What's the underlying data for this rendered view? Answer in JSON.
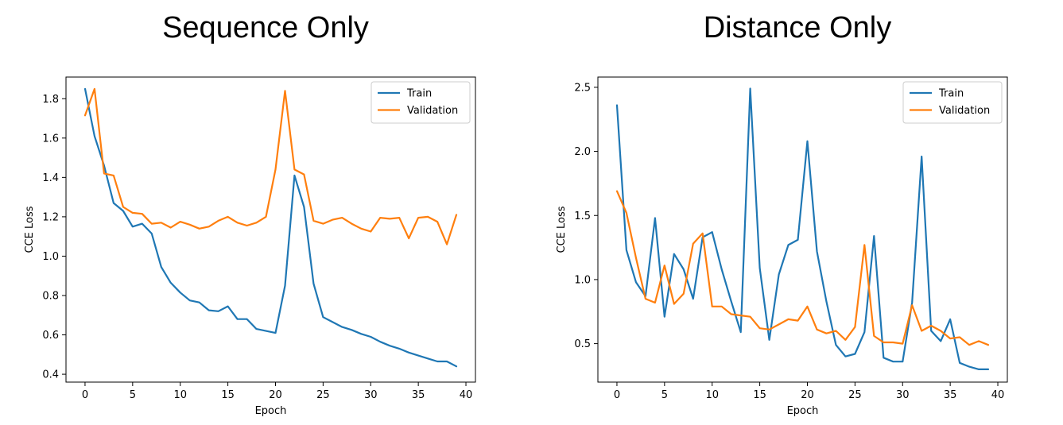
{
  "figures": {
    "left_title": "Sequence Only",
    "right_title": "Distance Only"
  },
  "colors": {
    "train": "#1f77b4",
    "validation": "#ff7f0e"
  },
  "chart_data": [
    {
      "type": "line",
      "title": "Sequence Only",
      "xlabel": "Epoch",
      "ylabel": "CCE Loss",
      "xlim": [
        -2,
        41
      ],
      "ylim": [
        0.36,
        1.91
      ],
      "xticks": [
        0,
        5,
        10,
        15,
        20,
        25,
        30,
        35,
        40
      ],
      "yticks": [
        0.4,
        0.6,
        0.8,
        1.0,
        1.2,
        1.4,
        1.6,
        1.8
      ],
      "ytick_labels": [
        "0.4",
        "0.6",
        "0.8",
        "1.0",
        "1.2",
        "1.4",
        "1.6",
        "1.8"
      ],
      "legend_position": "top-right",
      "grid": false,
      "x": [
        0,
        1,
        2,
        3,
        4,
        5,
        6,
        7,
        8,
        9,
        10,
        11,
        12,
        13,
        14,
        15,
        16,
        17,
        18,
        19,
        20,
        21,
        22,
        23,
        24,
        25,
        26,
        27,
        28,
        29,
        30,
        31,
        32,
        33,
        34,
        35,
        36,
        37,
        38,
        39
      ],
      "series": [
        {
          "name": "Train",
          "color": "#1f77b4",
          "values": [
            1.85,
            1.61,
            1.46,
            1.27,
            1.23,
            1.15,
            1.165,
            1.115,
            0.945,
            0.865,
            0.815,
            0.775,
            0.765,
            0.725,
            0.72,
            0.745,
            0.68,
            0.68,
            0.63,
            0.62,
            0.61,
            0.85,
            1.41,
            1.25,
            0.86,
            0.69,
            0.665,
            0.64,
            0.625,
            0.605,
            0.59,
            0.565,
            0.545,
            0.53,
            0.51,
            0.495,
            0.48,
            0.465,
            0.465,
            0.44
          ]
        },
        {
          "name": "Validation",
          "color": "#ff7f0e",
          "values": [
            1.715,
            1.85,
            1.42,
            1.41,
            1.25,
            1.22,
            1.215,
            1.165,
            1.17,
            1.145,
            1.175,
            1.16,
            1.14,
            1.15,
            1.18,
            1.2,
            1.17,
            1.155,
            1.17,
            1.2,
            1.44,
            1.84,
            1.44,
            1.415,
            1.18,
            1.165,
            1.185,
            1.195,
            1.165,
            1.14,
            1.125,
            1.195,
            1.19,
            1.195,
            1.09,
            1.195,
            1.2,
            1.175,
            1.06,
            1.21
          ]
        }
      ]
    },
    {
      "type": "line",
      "title": "Distance Only",
      "xlabel": "Epoch",
      "ylabel": "CCE Loss",
      "xlim": [
        -2,
        41
      ],
      "ylim": [
        0.2,
        2.58
      ],
      "xticks": [
        0,
        5,
        10,
        15,
        20,
        25,
        30,
        35,
        40
      ],
      "yticks": [
        0.5,
        1.0,
        1.5,
        2.0,
        2.5
      ],
      "ytick_labels": [
        "0.5",
        "1.0",
        "1.5",
        "2.0",
        "2.5"
      ],
      "legend_position": "top-right",
      "grid": false,
      "x": [
        0,
        1,
        2,
        3,
        4,
        5,
        6,
        7,
        8,
        9,
        10,
        11,
        12,
        13,
        14,
        15,
        16,
        17,
        18,
        19,
        20,
        21,
        22,
        23,
        24,
        25,
        26,
        27,
        28,
        29,
        30,
        31,
        32,
        33,
        34,
        35,
        36,
        37,
        38,
        39
      ],
      "series": [
        {
          "name": "Train",
          "color": "#1f77b4",
          "values": [
            2.36,
            1.23,
            0.98,
            0.87,
            1.48,
            0.71,
            1.2,
            1.08,
            0.85,
            1.33,
            1.37,
            1.08,
            0.83,
            0.59,
            2.49,
            1.09,
            0.53,
            1.04,
            1.27,
            1.31,
            2.08,
            1.22,
            0.83,
            0.49,
            0.4,
            0.42,
            0.59,
            1.34,
            0.39,
            0.36,
            0.36,
            0.82,
            1.96,
            0.6,
            0.52,
            0.69,
            0.35,
            0.32,
            0.3,
            0.3
          ]
        },
        {
          "name": "Validation",
          "color": "#ff7f0e",
          "values": [
            1.69,
            1.52,
            1.17,
            0.85,
            0.82,
            1.11,
            0.81,
            0.89,
            1.28,
            1.36,
            0.79,
            0.79,
            0.73,
            0.72,
            0.71,
            0.62,
            0.61,
            0.65,
            0.69,
            0.68,
            0.79,
            0.61,
            0.58,
            0.6,
            0.53,
            0.63,
            1.27,
            0.56,
            0.51,
            0.51,
            0.5,
            0.8,
            0.6,
            0.64,
            0.6,
            0.54,
            0.55,
            0.49,
            0.52,
            0.49
          ]
        }
      ]
    }
  ]
}
